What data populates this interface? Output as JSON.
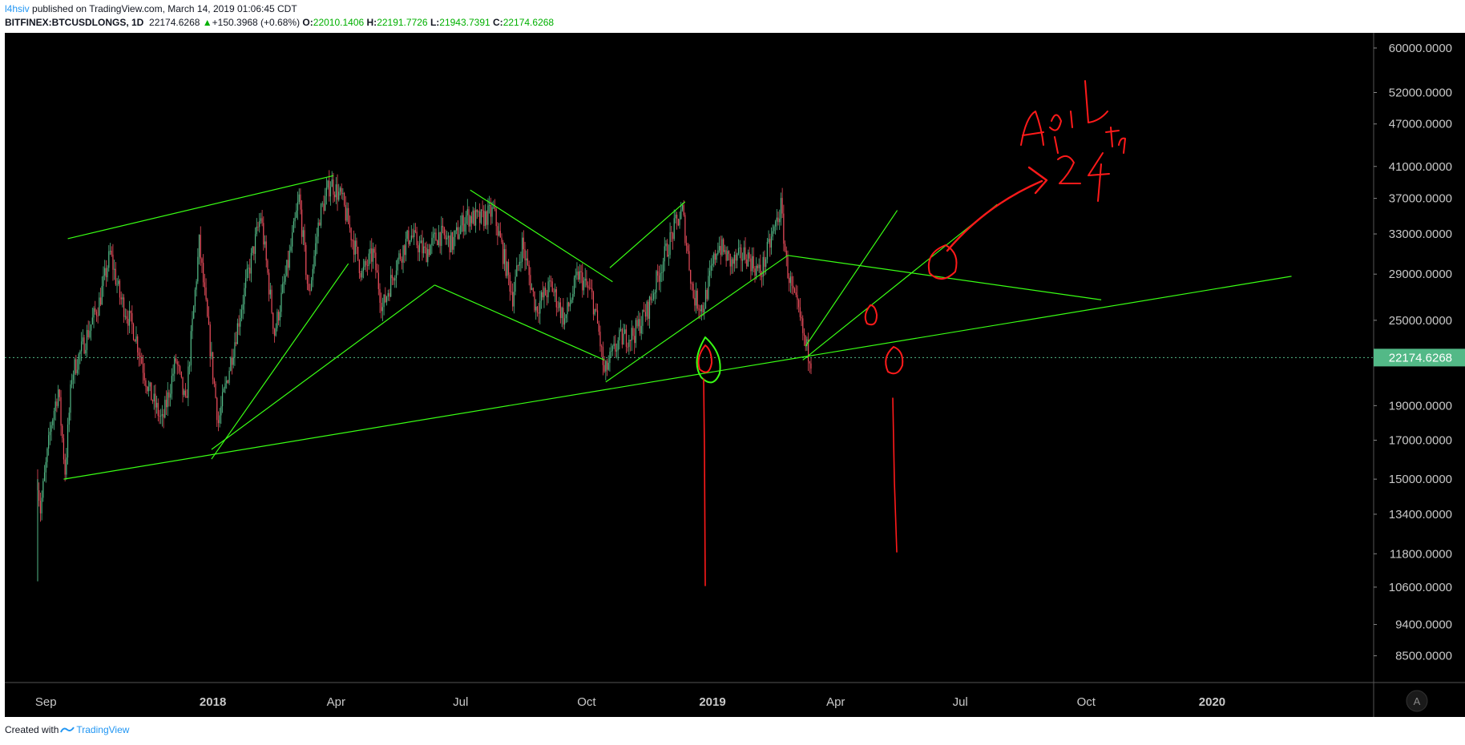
{
  "header": {
    "author": "l4hsiv",
    "published": "published on TradingView.com, March 14, 2019 01:06:45 CDT",
    "symbol": "BITFINEX:BTCUSDLONGS, 1D",
    "last": "22174.6268",
    "change_arrow": "▲",
    "change": "+150.3968 (+0.68%)",
    "o_label": "O:",
    "o_val": "22010.1406",
    "h_label": "H:",
    "h_val": "22191.7726",
    "l_label": "L:",
    "l_val": "21943.7391",
    "c_label": "C:",
    "c_val": "22174.6268"
  },
  "footer": {
    "created_with": "Created with",
    "brand": "TradingView"
  },
  "colors": {
    "background": "#000000",
    "bull": "#53b987",
    "bear": "#eb4d5c",
    "trendline": "#39ff14",
    "annotation": "#ff1a1a",
    "price_line": "#53b987"
  },
  "chart_data": {
    "type": "candlestick",
    "scale": "log",
    "title": "",
    "ylim": [
      7800,
      63000
    ],
    "y_ticks": [
      60000,
      52000,
      47000,
      41000,
      37000,
      33000,
      29000,
      25000,
      19000,
      17000,
      15000,
      13400,
      11800,
      10600,
      9400,
      8500
    ],
    "y_tick_labels": [
      "60000.0000",
      "52000.0000",
      "47000.0000",
      "41000.0000",
      "37000.0000",
      "33000.0000",
      "29000.0000",
      "25000.0000",
      "19000.0000",
      "17000.0000",
      "15000.0000",
      "13400.0000",
      "11800.0000",
      "10600.0000",
      "9400.0000",
      "8500.0000"
    ],
    "x_range": [
      "2017-08-02",
      "2020-04-28"
    ],
    "x_ticks": [
      {
        "date": "2017-09-01",
        "label": "Sep",
        "bold": false
      },
      {
        "date": "2018-01-01",
        "label": "2018",
        "bold": true
      },
      {
        "date": "2018-04-01",
        "label": "Apr",
        "bold": false
      },
      {
        "date": "2018-07-01",
        "label": "Jul",
        "bold": false
      },
      {
        "date": "2018-10-01",
        "label": "Oct",
        "bold": false
      },
      {
        "date": "2019-01-01",
        "label": "2019",
        "bold": true
      },
      {
        "date": "2019-04-01",
        "label": "Apr",
        "bold": false
      },
      {
        "date": "2019-07-01",
        "label": "Jul",
        "bold": false
      },
      {
        "date": "2019-10-01",
        "label": "Oct",
        "bold": false
      },
      {
        "date": "2020-01-01",
        "label": "2020",
        "bold": true
      }
    ],
    "price_series": [
      [
        "2017-08-26",
        15000
      ],
      [
        "2017-08-28",
        13600
      ],
      [
        "2017-09-05",
        18000
      ],
      [
        "2017-09-10",
        20000
      ],
      [
        "2017-09-15",
        15400
      ],
      [
        "2017-09-20",
        21000
      ],
      [
        "2017-09-28",
        23000
      ],
      [
        "2017-10-10",
        26500
      ],
      [
        "2017-10-18",
        31000
      ],
      [
        "2017-10-25",
        27000
      ],
      [
        "2017-11-05",
        24000
      ],
      [
        "2017-11-15",
        20000
      ],
      [
        "2017-11-25",
        18000
      ],
      [
        "2017-12-05",
        22000
      ],
      [
        "2017-12-12",
        19000
      ],
      [
        "2017-12-22",
        32000
      ],
      [
        "2017-12-31",
        22000
      ],
      [
        "2018-01-05",
        18000
      ],
      [
        "2018-01-12",
        21000
      ],
      [
        "2018-01-25",
        28000
      ],
      [
        "2018-02-05",
        35000
      ],
      [
        "2018-02-15",
        24000
      ],
      [
        "2018-02-25",
        30000
      ],
      [
        "2018-03-05",
        37000
      ],
      [
        "2018-03-12",
        27000
      ],
      [
        "2018-03-20",
        35000
      ],
      [
        "2018-03-28",
        39000
      ],
      [
        "2018-04-05",
        37000
      ],
      [
        "2018-04-12",
        33000
      ],
      [
        "2018-04-20",
        29000
      ],
      [
        "2018-04-28",
        31000
      ],
      [
        "2018-05-05",
        26000
      ],
      [
        "2018-05-15",
        30000
      ],
      [
        "2018-05-25",
        33000
      ],
      [
        "2018-06-05",
        31000
      ],
      [
        "2018-06-15",
        33000
      ],
      [
        "2018-06-25",
        32000
      ],
      [
        "2018-07-05",
        35000
      ],
      [
        "2018-07-15",
        34500
      ],
      [
        "2018-07-25",
        35500
      ],
      [
        "2018-08-01",
        31000
      ],
      [
        "2018-08-08",
        27000
      ],
      [
        "2018-08-15",
        32000
      ],
      [
        "2018-08-25",
        26000
      ],
      [
        "2018-09-05",
        28000
      ],
      [
        "2018-09-15",
        25000
      ],
      [
        "2018-09-25",
        29000
      ],
      [
        "2018-10-05",
        27000
      ],
      [
        "2018-10-10",
        24000
      ],
      [
        "2018-10-14",
        21000
      ],
      [
        "2018-10-18",
        22000
      ],
      [
        "2018-10-25",
        23500
      ],
      [
        "2018-11-05",
        24000
      ],
      [
        "2018-11-15",
        26000
      ],
      [
        "2018-11-25",
        30000
      ],
      [
        "2018-12-05",
        34000
      ],
      [
        "2018-12-10",
        35500
      ],
      [
        "2018-12-18",
        27000
      ],
      [
        "2018-12-25",
        26000
      ],
      [
        "2019-01-05",
        32000
      ],
      [
        "2019-01-15",
        30000
      ],
      [
        "2019-01-25",
        31000
      ],
      [
        "2019-02-05",
        29000
      ],
      [
        "2019-02-12",
        32000
      ],
      [
        "2019-02-20",
        36000
      ],
      [
        "2019-02-24",
        30000
      ],
      [
        "2019-03-01",
        27000
      ],
      [
        "2019-03-05",
        25500
      ],
      [
        "2019-03-10",
        23000
      ],
      [
        "2019-03-14",
        22174.6268
      ]
    ],
    "last_price": 22174.6268,
    "last_price_label": "22174.6268",
    "drawings": {
      "trendlines": [
        [
          [
            "2017-09-14",
            15000
          ],
          [
            "2020-02-28",
            28800
          ]
        ],
        [
          [
            "2017-12-31",
            16000
          ],
          [
            "2018-04-10",
            30000
          ]
        ],
        [
          [
            "2017-12-31",
            16500
          ],
          [
            "2018-06-12",
            28000
          ]
        ],
        [
          [
            "2017-09-17",
            32500
          ],
          [
            "2018-03-30",
            39800
          ]
        ],
        [
          [
            "2018-06-12",
            28000
          ],
          [
            "2018-10-14",
            22000
          ]
        ],
        [
          [
            "2018-07-08",
            38000
          ],
          [
            "2018-10-20",
            28300
          ]
        ],
        [
          [
            "2018-10-15",
            20500
          ],
          [
            "2019-02-25",
            30800
          ]
        ],
        [
          [
            "2018-10-18",
            29600
          ],
          [
            "2018-12-12",
            36600
          ]
        ],
        [
          [
            "2019-02-25",
            30800
          ],
          [
            "2019-10-12",
            26700
          ]
        ],
        [
          [
            "2019-03-10",
            23000
          ],
          [
            "2019-05-16",
            35600
          ]
        ],
        [
          [
            "2019-03-08",
            22000
          ],
          [
            "2019-07-28",
            36300
          ]
        ]
      ],
      "annotation_text": [
        "April",
        "th",
        "24"
      ]
    }
  }
}
